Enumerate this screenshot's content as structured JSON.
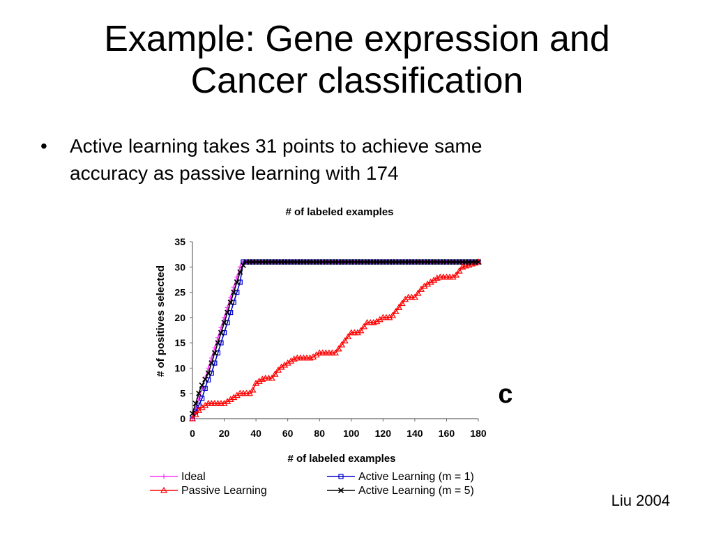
{
  "slide": {
    "title_line1": "Example: Gene expression and",
    "title_line2": "Cancer classification",
    "bullet_symbol": "•",
    "bullet_line1": "Active learning takes 31 points to achieve same",
    "bullet_line2": "accuracy as passive learning with 174",
    "citation": "Liu 2004"
  },
  "chart_data": {
    "type": "line",
    "title": "# of labeled examples",
    "xlabel": "# of labeled examples",
    "ylabel": "# of positives selected",
    "panel_label": "c",
    "xlim": [
      0,
      180
    ],
    "ylim": [
      0,
      35
    ],
    "xticks": [
      0,
      20,
      40,
      60,
      80,
      100,
      120,
      140,
      160,
      180
    ],
    "yticks": [
      0,
      5,
      10,
      15,
      20,
      25,
      30,
      35
    ],
    "grid": false,
    "legend_position": "bottom",
    "series": [
      {
        "name": "Ideal",
        "color": "#ff33ff",
        "marker": "plus",
        "points": [
          [
            0,
            0
          ],
          [
            31,
            31
          ],
          [
            180,
            31
          ]
        ]
      },
      {
        "name": "Active Learning (m = 1)",
        "color": "#0000cc",
        "marker": "square",
        "points": [
          [
            0,
            0
          ],
          [
            3,
            2
          ],
          [
            6,
            4
          ],
          [
            9,
            7
          ],
          [
            12,
            9
          ],
          [
            15,
            12
          ],
          [
            18,
            15
          ],
          [
            21,
            18
          ],
          [
            24,
            21
          ],
          [
            27,
            24
          ],
          [
            30,
            27
          ],
          [
            32,
            31
          ],
          [
            180,
            31
          ]
        ]
      },
      {
        "name": "Passive Learning",
        "color": "#ff0000",
        "marker": "triangle",
        "points": [
          [
            0,
            0
          ],
          [
            5,
            2
          ],
          [
            10,
            3
          ],
          [
            20,
            3
          ],
          [
            25,
            4
          ],
          [
            30,
            5
          ],
          [
            37,
            5
          ],
          [
            40,
            7
          ],
          [
            45,
            8
          ],
          [
            50,
            8
          ],
          [
            55,
            10
          ],
          [
            60,
            11
          ],
          [
            65,
            12
          ],
          [
            75,
            12
          ],
          [
            80,
            13
          ],
          [
            90,
            13
          ],
          [
            95,
            15
          ],
          [
            100,
            17
          ],
          [
            105,
            17
          ],
          [
            110,
            19
          ],
          [
            115,
            19
          ],
          [
            120,
            20
          ],
          [
            125,
            20
          ],
          [
            130,
            22
          ],
          [
            135,
            24
          ],
          [
            140,
            24
          ],
          [
            145,
            26
          ],
          [
            150,
            27
          ],
          [
            155,
            28
          ],
          [
            165,
            28
          ],
          [
            170,
            30
          ],
          [
            180,
            31
          ]
        ]
      },
      {
        "name": "Active Learning (m = 5)",
        "color": "#000000",
        "marker": "x",
        "points": [
          [
            0,
            1
          ],
          [
            5,
            6
          ],
          [
            10,
            9
          ],
          [
            15,
            14
          ],
          [
            20,
            19
          ],
          [
            25,
            24
          ],
          [
            30,
            29
          ],
          [
            33,
            31
          ],
          [
            180,
            31
          ]
        ]
      }
    ]
  }
}
